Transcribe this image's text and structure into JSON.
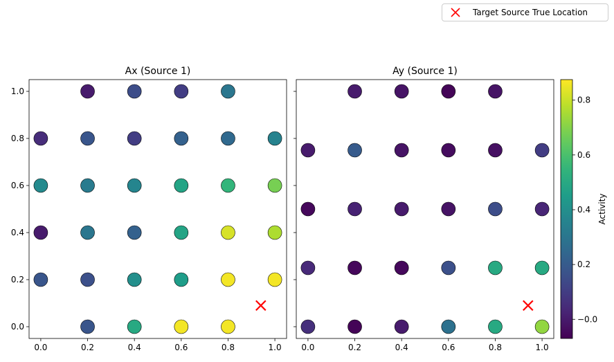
{
  "legend": {
    "label": "Target Source True Location",
    "marker_color": "#ff0000"
  },
  "colorbar": {
    "label": "Activity",
    "range": [
      -0.07,
      0.875
    ],
    "ticks": [
      -0.0,
      0.2,
      0.4,
      0.6,
      0.8
    ],
    "tick_labels": [
      "−0.0",
      "0.2",
      "0.4",
      "0.6",
      "0.8"
    ]
  },
  "chart_data": [
    {
      "type": "scatter",
      "title": "Ax (Source 1)",
      "xlim": [
        -0.05,
        1.05
      ],
      "ylim": [
        -0.05,
        1.05
      ],
      "xticks": [
        0.0,
        0.2,
        0.4,
        0.6,
        0.8,
        1.0
      ],
      "yticks": [
        0.0,
        0.2,
        0.4,
        0.6,
        0.8,
        1.0
      ],
      "xtick_labels": [
        "0.0",
        "0.2",
        "0.4",
        "0.6",
        "0.8",
        "1.0"
      ],
      "ytick_labels": [
        "0.0",
        "0.2",
        "0.4",
        "0.6",
        "0.8",
        "1.0"
      ],
      "points": [
        {
          "x": 0.2,
          "y": 1.0,
          "v": 0.0
        },
        {
          "x": 0.4,
          "y": 1.0,
          "v": 0.15
        },
        {
          "x": 0.6,
          "y": 1.0,
          "v": 0.1
        },
        {
          "x": 0.8,
          "y": 1.0,
          "v": 0.3
        },
        {
          "x": 0.0,
          "y": 0.8,
          "v": 0.05
        },
        {
          "x": 0.2,
          "y": 0.8,
          "v": 0.18
        },
        {
          "x": 0.4,
          "y": 0.8,
          "v": 0.1
        },
        {
          "x": 0.6,
          "y": 0.8,
          "v": 0.22
        },
        {
          "x": 0.8,
          "y": 0.8,
          "v": 0.25
        },
        {
          "x": 1.0,
          "y": 0.8,
          "v": 0.35
        },
        {
          "x": 0.0,
          "y": 0.6,
          "v": 0.38
        },
        {
          "x": 0.2,
          "y": 0.6,
          "v": 0.32
        },
        {
          "x": 0.4,
          "y": 0.6,
          "v": 0.36
        },
        {
          "x": 0.6,
          "y": 0.6,
          "v": 0.48
        },
        {
          "x": 0.8,
          "y": 0.6,
          "v": 0.55
        },
        {
          "x": 1.0,
          "y": 0.6,
          "v": 0.68
        },
        {
          "x": 0.0,
          "y": 0.4,
          "v": 0.0
        },
        {
          "x": 0.2,
          "y": 0.4,
          "v": 0.3
        },
        {
          "x": 0.4,
          "y": 0.4,
          "v": 0.22
        },
        {
          "x": 0.6,
          "y": 0.4,
          "v": 0.48
        },
        {
          "x": 0.8,
          "y": 0.4,
          "v": 0.82
        },
        {
          "x": 1.0,
          "y": 0.4,
          "v": 0.76
        },
        {
          "x": 0.0,
          "y": 0.2,
          "v": 0.18
        },
        {
          "x": 0.2,
          "y": 0.2,
          "v": 0.16
        },
        {
          "x": 0.4,
          "y": 0.2,
          "v": 0.4
        },
        {
          "x": 0.6,
          "y": 0.2,
          "v": 0.45
        },
        {
          "x": 0.8,
          "y": 0.2,
          "v": 0.86
        },
        {
          "x": 1.0,
          "y": 0.2,
          "v": 0.86
        },
        {
          "x": 0.2,
          "y": 0.0,
          "v": 0.18
        },
        {
          "x": 0.4,
          "y": 0.0,
          "v": 0.5
        },
        {
          "x": 0.6,
          "y": 0.0,
          "v": 0.86
        },
        {
          "x": 0.8,
          "y": 0.0,
          "v": 0.86
        }
      ],
      "target": {
        "x": 0.94,
        "y": 0.09
      }
    },
    {
      "type": "scatter",
      "title": "Ay (Source 1)",
      "xlim": [
        -0.05,
        1.05
      ],
      "ylim": [
        -0.05,
        1.05
      ],
      "xticks": [
        0.0,
        0.2,
        0.4,
        0.6,
        0.8,
        1.0
      ],
      "xtick_labels": [
        "0.0",
        "0.2",
        "0.4",
        "0.6",
        "0.8",
        "1.0"
      ],
      "points": [
        {
          "x": 0.2,
          "y": 1.0,
          "v": 0.0
        },
        {
          "x": 0.4,
          "y": 1.0,
          "v": -0.02
        },
        {
          "x": 0.6,
          "y": 1.0,
          "v": -0.06
        },
        {
          "x": 0.8,
          "y": 1.0,
          "v": -0.02
        },
        {
          "x": 0.0,
          "y": 0.75,
          "v": 0.0
        },
        {
          "x": 0.2,
          "y": 0.75,
          "v": 0.2
        },
        {
          "x": 0.4,
          "y": 0.75,
          "v": -0.02
        },
        {
          "x": 0.6,
          "y": 0.75,
          "v": -0.04
        },
        {
          "x": 0.8,
          "y": 0.75,
          "v": -0.03
        },
        {
          "x": 1.0,
          "y": 0.75,
          "v": 0.1
        },
        {
          "x": 0.0,
          "y": 0.5,
          "v": -0.05
        },
        {
          "x": 0.2,
          "y": 0.5,
          "v": 0.02
        },
        {
          "x": 0.4,
          "y": 0.5,
          "v": 0.0
        },
        {
          "x": 0.6,
          "y": 0.5,
          "v": -0.02
        },
        {
          "x": 0.8,
          "y": 0.5,
          "v": 0.15
        },
        {
          "x": 1.0,
          "y": 0.5,
          "v": 0.03
        },
        {
          "x": 0.0,
          "y": 0.25,
          "v": 0.04
        },
        {
          "x": 0.2,
          "y": 0.25,
          "v": -0.05
        },
        {
          "x": 0.4,
          "y": 0.25,
          "v": -0.05
        },
        {
          "x": 0.6,
          "y": 0.25,
          "v": 0.16
        },
        {
          "x": 0.8,
          "y": 0.25,
          "v": 0.5
        },
        {
          "x": 1.0,
          "y": 0.25,
          "v": 0.5
        },
        {
          "x": 0.0,
          "y": 0.0,
          "v": 0.06
        },
        {
          "x": 0.2,
          "y": 0.0,
          "v": -0.06
        },
        {
          "x": 0.4,
          "y": 0.0,
          "v": 0.0
        },
        {
          "x": 0.6,
          "y": 0.0,
          "v": 0.28
        },
        {
          "x": 0.8,
          "y": 0.0,
          "v": 0.5
        },
        {
          "x": 1.0,
          "y": 0.0,
          "v": 0.72
        }
      ],
      "target": {
        "x": 0.94,
        "y": 0.09
      }
    }
  ]
}
